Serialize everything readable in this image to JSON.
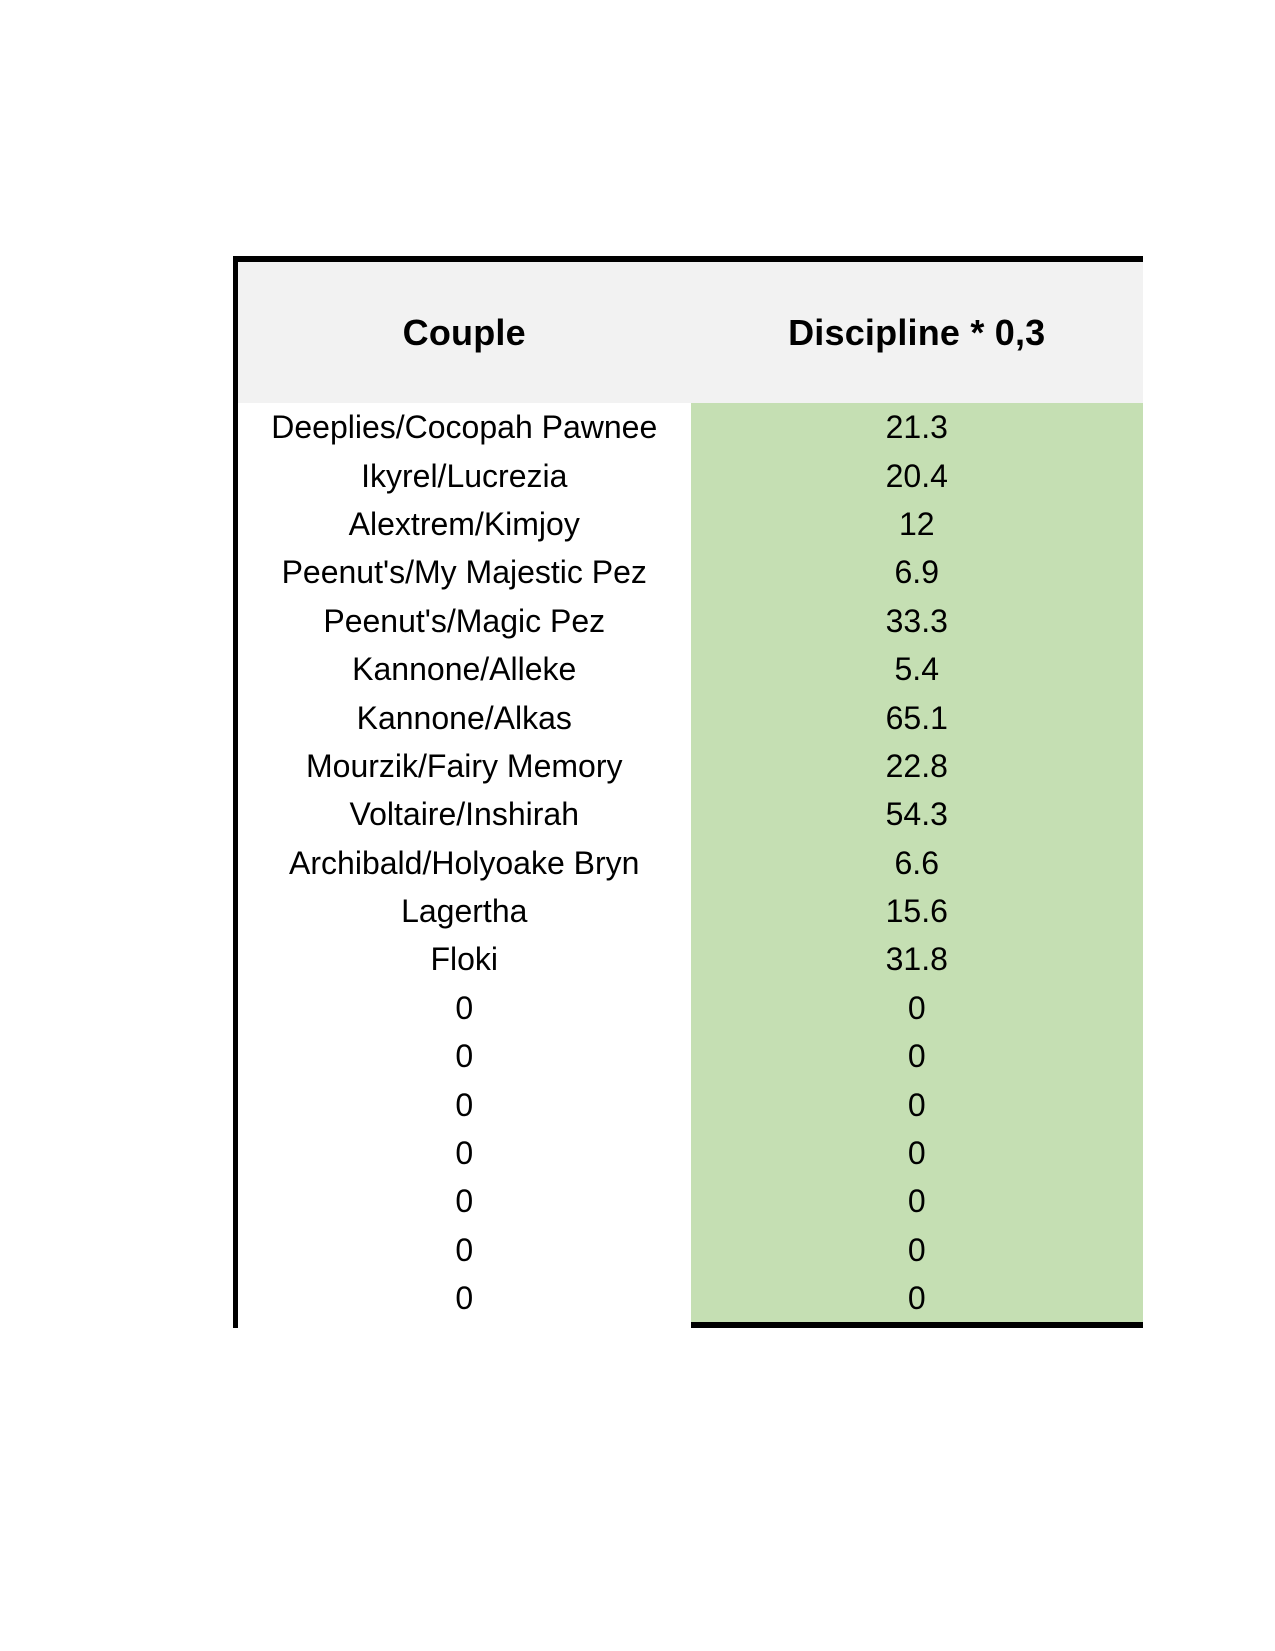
{
  "table": {
    "headers": {
      "couple": "Couple",
      "discipline": "Discipline * 0,3"
    },
    "rows": [
      {
        "couple": "Deeplies/Cocopah Pawnee",
        "value": "21.3"
      },
      {
        "couple": "Ikyrel/Lucrezia",
        "value": "20.4"
      },
      {
        "couple": "Alextrem/Kimjoy",
        "value": "12"
      },
      {
        "couple": "Peenut's/My Majestic Pez",
        "value": "6.9"
      },
      {
        "couple": "Peenut's/Magic Pez",
        "value": "33.3"
      },
      {
        "couple": "Kannone/Alleke",
        "value": "5.4"
      },
      {
        "couple": "Kannone/Alkas",
        "value": "65.1"
      },
      {
        "couple": "Mourzik/Fairy Memory",
        "value": "22.8"
      },
      {
        "couple": "Voltaire/Inshirah",
        "value": "54.3"
      },
      {
        "couple": "Archibald/Holyoake Bryn",
        "value": "6.6"
      },
      {
        "couple": "Lagertha",
        "value": "15.6"
      },
      {
        "couple": "Floki",
        "value": "31.8"
      },
      {
        "couple": "0",
        "value": "0"
      },
      {
        "couple": "0",
        "value": "0"
      },
      {
        "couple": "0",
        "value": "0"
      },
      {
        "couple": "0",
        "value": "0"
      },
      {
        "couple": "0",
        "value": "0"
      },
      {
        "couple": "0",
        "value": "0"
      },
      {
        "couple": "0",
        "value": "0"
      }
    ],
    "colors": {
      "header_bg": "#f2f2f2",
      "value_column_bg": "#c5dfb3",
      "border": "#000000"
    }
  }
}
